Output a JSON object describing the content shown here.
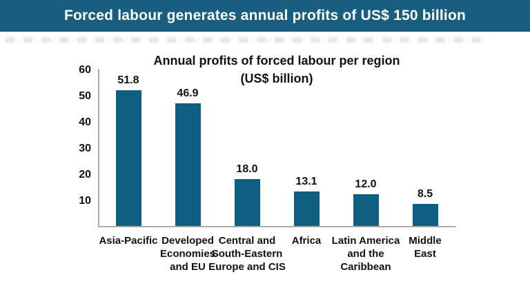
{
  "banner": {
    "text": "Forced labour generates annual profits of US$ 150 billion",
    "bg_color": "#175e80",
    "text_color": "#ffffff"
  },
  "chart_data": {
    "type": "bar",
    "title": "Annual profits of forced labour per region",
    "subtitle": "(US$ billion)",
    "categories": [
      "Asia-Pacific",
      "Developed\nEconomies\nand EU",
      "Central and\nSouth-Eastern\nEurope and CIS",
      "Africa",
      "Latin America\nand the\nCaribbean",
      "Middle\nEast"
    ],
    "values": [
      51.8,
      46.9,
      18.0,
      13.1,
      12.0,
      8.5
    ],
    "value_labels": [
      "51.8",
      "46.9",
      "18.0",
      "13.1",
      "12.0",
      "8.5"
    ],
    "yticks": [
      10,
      20,
      30,
      40,
      50,
      60
    ],
    "ylim": [
      0,
      60
    ],
    "grid": false,
    "legend": "none",
    "bar_color": "#0e5f81",
    "axis_color": "#a9a9a9",
    "label_color": "#111111"
  }
}
